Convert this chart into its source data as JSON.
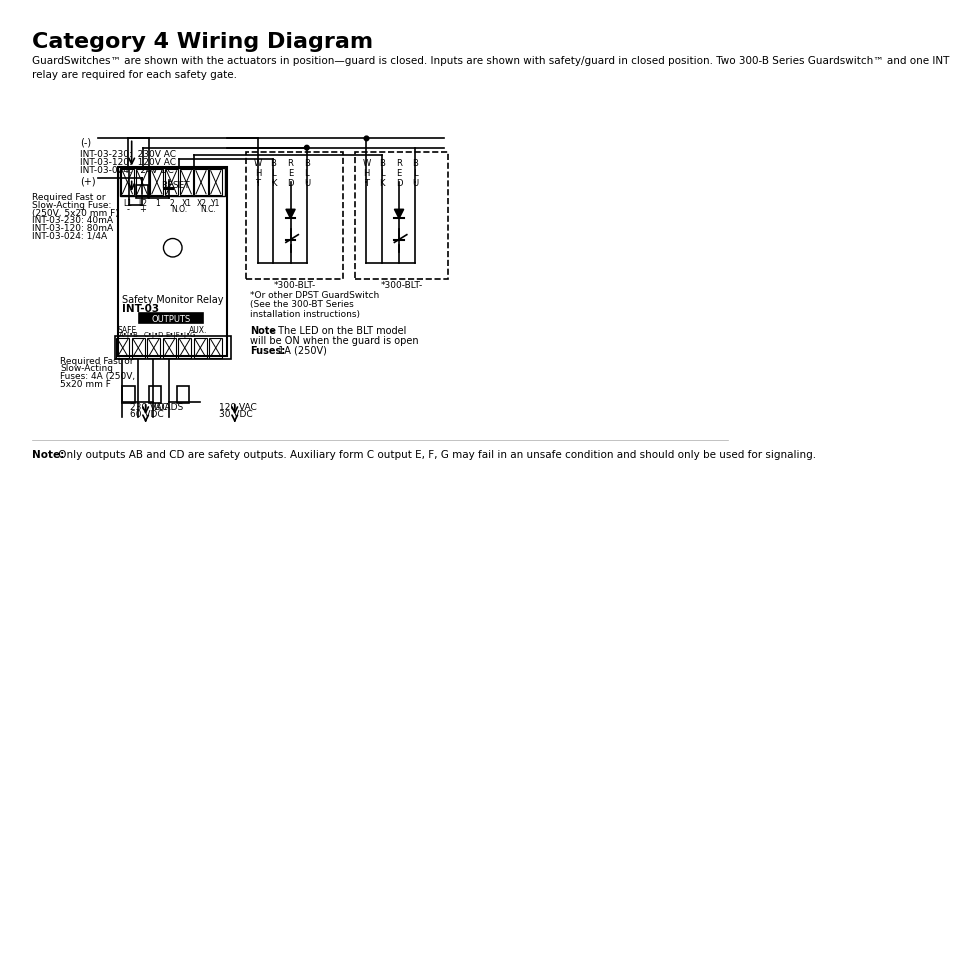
{
  "title": "Category 4 Wiring Diagram",
  "subtitle": "GuardSwitches™ are shown with the actuators in position—guard is closed. Inputs are shown with safety/guard in closed position. Two 300-B Series Guardswitch™ and one INT\nrelay are required for each safety gate.",
  "note_bottom": "Note:  Only outputs AB and CD are safety outputs. Auxiliary form C output E, F, G may fail in an unsafe condition and should only be used for signaling.",
  "bg_color": "#ffffff",
  "line_color": "#000000",
  "gray_line": "#888888"
}
